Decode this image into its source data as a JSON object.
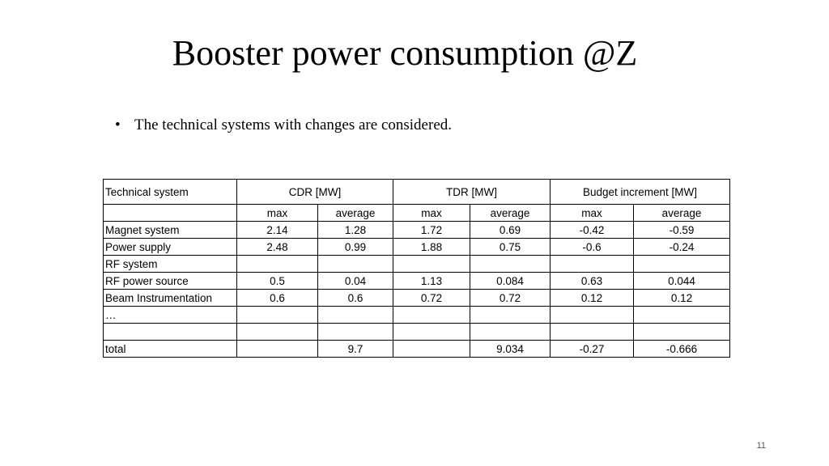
{
  "slide": {
    "title": "Booster power consumption @Z",
    "bullet": "The technical systems with changes are considered.",
    "bullet_marker": "•",
    "page_number": "11"
  },
  "table": {
    "header": [
      "Technical system",
      "CDR  [MW]",
      "TDR  [MW]",
      "Budget increment [MW]"
    ],
    "subheader": [
      "",
      "max",
      "average",
      "max",
      "average",
      "max",
      "average"
    ],
    "rows": [
      [
        "Magnet system",
        "2.14",
        "1.28",
        "1.72",
        "0.69",
        "-0.42",
        "-0.59"
      ],
      [
        "Power supply",
        "2.48",
        "0.99",
        "1.88",
        "0.75",
        "-0.6",
        "-0.24"
      ],
      [
        "RF system",
        "",
        "",
        "",
        "",
        "",
        ""
      ],
      [
        "RF power source",
        "0.5",
        "0.04",
        "1.13",
        "0.084",
        "0.63",
        "0.044"
      ],
      [
        "Beam Instrumentation",
        "0.6",
        "0.6",
        "0.72",
        "0.72",
        "0.12",
        "0.12"
      ],
      [
        "…",
        "",
        "",
        "",
        "",
        "",
        ""
      ],
      [
        "",
        "",
        "",
        "",
        "",
        "",
        ""
      ],
      [
        "total",
        "",
        "9.7",
        "",
        "9.034",
        "-0.27",
        "-0.666"
      ]
    ]
  }
}
